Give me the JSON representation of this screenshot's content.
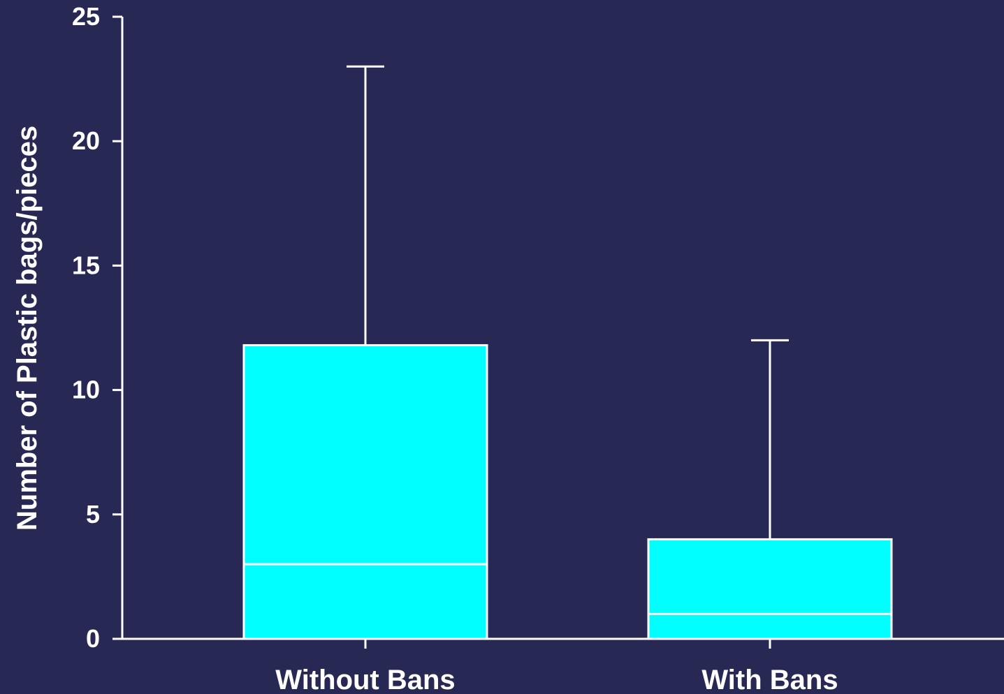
{
  "chart_data": {
    "type": "box",
    "title": "",
    "xlabel": "",
    "ylabel": "Number of Plastic bags/pieces",
    "ylim": [
      0,
      25
    ],
    "yticks": [
      "0",
      "5",
      "10",
      "15",
      "20",
      "25"
    ],
    "categories": [
      "Without Bans",
      "With Bans"
    ],
    "boxes": [
      {
        "category": "Without Bans",
        "min": 0,
        "q1": 0,
        "median": 3,
        "q3": 11.8,
        "max": 23
      },
      {
        "category": "With Bans",
        "min": 0,
        "q1": 0,
        "median": 1,
        "q3": 4,
        "max": 12
      }
    ],
    "grid": false,
    "legend": "none",
    "colors": {
      "background": "#272853",
      "box_fill": "#00ffff",
      "lines": "#ffffff"
    }
  }
}
